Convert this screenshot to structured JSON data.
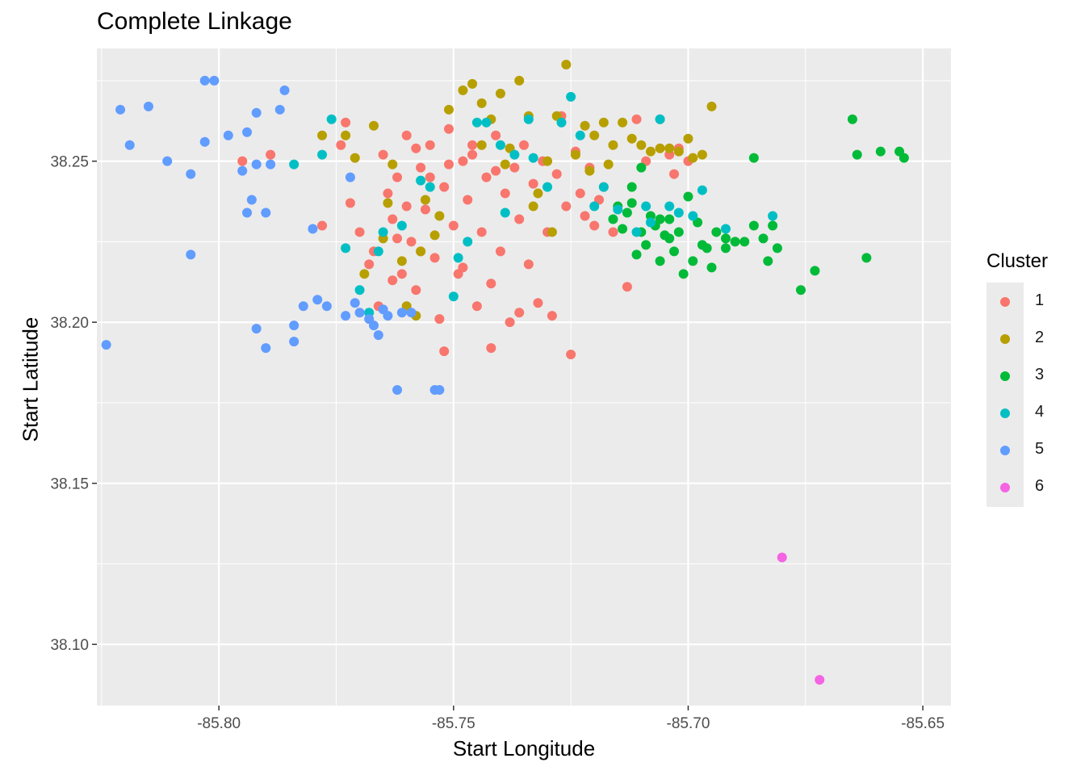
{
  "chart_data": {
    "type": "scatter",
    "title": "Complete Linkage",
    "xlabel": "Start Longitude",
    "ylabel": "Start Latitude",
    "xlim": [
      -85.826,
      -85.644
    ],
    "ylim": [
      38.081,
      38.285
    ],
    "x_ticks": [
      -85.8,
      -85.75,
      -85.7,
      -85.65
    ],
    "x_tick_labels": [
      "-85.80",
      "-85.75",
      "-85.70",
      "-85.65"
    ],
    "y_ticks": [
      38.1,
      38.15,
      38.2,
      38.25
    ],
    "y_tick_labels": [
      "38.10",
      "38.15",
      "38.20",
      "38.25"
    ],
    "grid": true,
    "legend": {
      "title": "Cluster",
      "position": "right"
    },
    "series": [
      {
        "name": "1",
        "color": "#F8766D",
        "points": [
          [
            -85.795,
            38.25
          ],
          [
            -85.789,
            38.252
          ],
          [
            -85.778,
            38.23
          ],
          [
            -85.774,
            38.255
          ],
          [
            -85.773,
            38.262
          ],
          [
            -85.772,
            38.237
          ],
          [
            -85.77,
            38.228
          ],
          [
            -85.768,
            38.218
          ],
          [
            -85.767,
            38.222
          ],
          [
            -85.766,
            38.205
          ],
          [
            -85.765,
            38.252
          ],
          [
            -85.764,
            38.24
          ],
          [
            -85.763,
            38.232
          ],
          [
            -85.762,
            38.245
          ],
          [
            -85.761,
            38.215
          ],
          [
            -85.76,
            38.258
          ],
          [
            -85.759,
            38.225
          ],
          [
            -85.758,
            38.21
          ],
          [
            -85.757,
            38.248
          ],
          [
            -85.756,
            38.235
          ],
          [
            -85.755,
            38.255
          ],
          [
            -85.754,
            38.22
          ],
          [
            -85.753,
            38.201
          ],
          [
            -85.752,
            38.242
          ],
          [
            -85.751,
            38.26
          ],
          [
            -85.75,
            38.23
          ],
          [
            -85.749,
            38.215
          ],
          [
            -85.748,
            38.25
          ],
          [
            -85.747,
            38.238
          ],
          [
            -85.746,
            38.255
          ],
          [
            -85.745,
            38.205
          ],
          [
            -85.744,
            38.228
          ],
          [
            -85.743,
            38.245
          ],
          [
            -85.742,
            38.212
          ],
          [
            -85.741,
            38.258
          ],
          [
            -85.74,
            38.222
          ],
          [
            -85.739,
            38.24
          ],
          [
            -85.738,
            38.2
          ],
          [
            -85.737,
            38.248
          ],
          [
            -85.736,
            38.232
          ],
          [
            -85.735,
            38.255
          ],
          [
            -85.734,
            38.218
          ],
          [
            -85.733,
            38.243
          ],
          [
            -85.732,
            38.206
          ],
          [
            -85.731,
            38.25
          ],
          [
            -85.73,
            38.228
          ],
          [
            -85.729,
            38.202
          ],
          [
            -85.728,
            38.246
          ],
          [
            -85.727,
            38.264
          ],
          [
            -85.726,
            38.236
          ],
          [
            -85.725,
            38.19
          ],
          [
            -85.724,
            38.253
          ],
          [
            -85.723,
            38.24
          ],
          [
            -85.722,
            38.233
          ],
          [
            -85.721,
            38.248
          ],
          [
            -85.72,
            38.23
          ],
          [
            -85.719,
            38.238
          ],
          [
            -85.718,
            38.242
          ],
          [
            -85.716,
            38.228
          ],
          [
            -85.713,
            38.211
          ],
          [
            -85.711,
            38.263
          ],
          [
            -85.709,
            38.25
          ],
          [
            -85.706,
            38.263
          ],
          [
            -85.704,
            38.252
          ],
          [
            -85.703,
            38.246
          ],
          [
            -85.702,
            38.254
          ],
          [
            -85.7,
            38.25
          ],
          [
            -85.742,
            38.192
          ],
          [
            -85.752,
            38.191
          ],
          [
            -85.736,
            38.203
          ],
          [
            -85.748,
            38.217
          ],
          [
            -85.757,
            38.222
          ],
          [
            -85.763,
            38.213
          ],
          [
            -85.76,
            38.236
          ],
          [
            -85.755,
            38.245
          ],
          [
            -85.751,
            38.249
          ],
          [
            -85.746,
            38.252
          ],
          [
            -85.741,
            38.247
          ],
          [
            -85.758,
            38.254
          ],
          [
            -85.762,
            38.226
          ]
        ]
      },
      {
        "name": "2",
        "color": "#B79F00",
        "points": [
          [
            -85.778,
            38.258
          ],
          [
            -85.773,
            38.258
          ],
          [
            -85.771,
            38.251
          ],
          [
            -85.769,
            38.215
          ],
          [
            -85.767,
            38.261
          ],
          [
            -85.765,
            38.226
          ],
          [
            -85.763,
            38.249
          ],
          [
            -85.76,
            38.205
          ],
          [
            -85.758,
            38.202
          ],
          [
            -85.756,
            38.238
          ],
          [
            -85.754,
            38.227
          ],
          [
            -85.751,
            38.266
          ],
          [
            -85.748,
            38.272
          ],
          [
            -85.746,
            38.274
          ],
          [
            -85.744,
            38.255
          ],
          [
            -85.742,
            38.263
          ],
          [
            -85.74,
            38.271
          ],
          [
            -85.738,
            38.254
          ],
          [
            -85.736,
            38.275
          ],
          [
            -85.734,
            38.264
          ],
          [
            -85.732,
            38.24
          ],
          [
            -85.73,
            38.25
          ],
          [
            -85.728,
            38.264
          ],
          [
            -85.726,
            38.28
          ],
          [
            -85.724,
            38.252
          ],
          [
            -85.722,
            38.261
          ],
          [
            -85.72,
            38.258
          ],
          [
            -85.718,
            38.262
          ],
          [
            -85.716,
            38.255
          ],
          [
            -85.714,
            38.262
          ],
          [
            -85.712,
            38.257
          ],
          [
            -85.71,
            38.255
          ],
          [
            -85.708,
            38.253
          ],
          [
            -85.706,
            38.254
          ],
          [
            -85.704,
            38.254
          ],
          [
            -85.702,
            38.253
          ],
          [
            -85.7,
            38.257
          ],
          [
            -85.699,
            38.251
          ],
          [
            -85.697,
            38.252
          ],
          [
            -85.695,
            38.267
          ],
          [
            -85.744,
            38.268
          ],
          [
            -85.739,
            38.249
          ],
          [
            -85.733,
            38.236
          ],
          [
            -85.729,
            38.228
          ],
          [
            -85.721,
            38.247
          ],
          [
            -85.717,
            38.249
          ],
          [
            -85.757,
            38.222
          ],
          [
            -85.753,
            38.233
          ],
          [
            -85.761,
            38.219
          ],
          [
            -85.764,
            38.237
          ]
        ]
      },
      {
        "name": "3",
        "color": "#00BA38",
        "points": [
          [
            -85.665,
            38.263
          ],
          [
            -85.664,
            38.252
          ],
          [
            -85.659,
            38.253
          ],
          [
            -85.655,
            38.253
          ],
          [
            -85.654,
            38.251
          ],
          [
            -85.662,
            38.22
          ],
          [
            -85.673,
            38.216
          ],
          [
            -85.676,
            38.21
          ],
          [
            -85.681,
            38.223
          ],
          [
            -85.682,
            38.23
          ],
          [
            -85.683,
            38.219
          ],
          [
            -85.684,
            38.226
          ],
          [
            -85.686,
            38.23
          ],
          [
            -85.686,
            38.251
          ],
          [
            -85.69,
            38.225
          ],
          [
            -85.692,
            38.223
          ],
          [
            -85.694,
            38.228
          ],
          [
            -85.695,
            38.217
          ],
          [
            -85.697,
            38.224
          ],
          [
            -85.699,
            38.219
          ],
          [
            -85.7,
            38.239
          ],
          [
            -85.701,
            38.215
          ],
          [
            -85.702,
            38.228
          ],
          [
            -85.703,
            38.222
          ],
          [
            -85.704,
            38.232
          ],
          [
            -85.705,
            38.227
          ],
          [
            -85.706,
            38.219
          ],
          [
            -85.707,
            38.23
          ],
          [
            -85.708,
            38.233
          ],
          [
            -85.709,
            38.224
          ],
          [
            -85.71,
            38.228
          ],
          [
            -85.711,
            38.221
          ],
          [
            -85.712,
            38.237
          ],
          [
            -85.713,
            38.234
          ],
          [
            -85.714,
            38.229
          ],
          [
            -85.715,
            38.236
          ],
          [
            -85.716,
            38.232
          ],
          [
            -85.71,
            38.248
          ],
          [
            -85.712,
            38.242
          ],
          [
            -85.698,
            38.231
          ],
          [
            -85.696,
            38.223
          ],
          [
            -85.692,
            38.226
          ],
          [
            -85.688,
            38.225
          ],
          [
            -85.704,
            38.226
          ],
          [
            -85.706,
            38.232
          ]
        ]
      },
      {
        "name": "4",
        "color": "#00BFC4",
        "points": [
          [
            -85.784,
            38.249
          ],
          [
            -85.776,
            38.263
          ],
          [
            -85.778,
            38.252
          ],
          [
            -85.773,
            38.223
          ],
          [
            -85.77,
            38.21
          ],
          [
            -85.768,
            38.203
          ],
          [
            -85.766,
            38.222
          ],
          [
            -85.765,
            38.228
          ],
          [
            -85.761,
            38.23
          ],
          [
            -85.757,
            38.244
          ],
          [
            -85.755,
            38.242
          ],
          [
            -85.75,
            38.208
          ],
          [
            -85.749,
            38.22
          ],
          [
            -85.747,
            38.225
          ],
          [
            -85.745,
            38.262
          ],
          [
            -85.743,
            38.262
          ],
          [
            -85.74,
            38.255
          ],
          [
            -85.739,
            38.234
          ],
          [
            -85.737,
            38.252
          ],
          [
            -85.734,
            38.263
          ],
          [
            -85.733,
            38.251
          ],
          [
            -85.73,
            38.242
          ],
          [
            -85.727,
            38.262
          ],
          [
            -85.725,
            38.27
          ],
          [
            -85.723,
            38.258
          ],
          [
            -85.72,
            38.236
          ],
          [
            -85.718,
            38.242
          ],
          [
            -85.715,
            38.235
          ],
          [
            -85.711,
            38.228
          ],
          [
            -85.709,
            38.236
          ],
          [
            -85.706,
            38.263
          ],
          [
            -85.704,
            38.236
          ],
          [
            -85.702,
            38.234
          ],
          [
            -85.699,
            38.233
          ],
          [
            -85.697,
            38.241
          ],
          [
            -85.692,
            38.229
          ],
          [
            -85.682,
            38.233
          ],
          [
            -85.708,
            38.231
          ]
        ]
      },
      {
        "name": "5",
        "color": "#619CFF",
        "points": [
          [
            -85.824,
            38.193
          ],
          [
            -85.821,
            38.266
          ],
          [
            -85.819,
            38.255
          ],
          [
            -85.815,
            38.267
          ],
          [
            -85.811,
            38.25
          ],
          [
            -85.806,
            38.246
          ],
          [
            -85.806,
            38.221
          ],
          [
            -85.803,
            38.256
          ],
          [
            -85.803,
            38.275
          ],
          [
            -85.801,
            38.275
          ],
          [
            -85.798,
            38.258
          ],
          [
            -85.795,
            38.247
          ],
          [
            -85.794,
            38.259
          ],
          [
            -85.794,
            38.234
          ],
          [
            -85.793,
            38.238
          ],
          [
            -85.792,
            38.249
          ],
          [
            -85.792,
            38.265
          ],
          [
            -85.792,
            38.198
          ],
          [
            -85.79,
            38.192
          ],
          [
            -85.79,
            38.234
          ],
          [
            -85.789,
            38.249
          ],
          [
            -85.787,
            38.266
          ],
          [
            -85.786,
            38.272
          ],
          [
            -85.784,
            38.199
          ],
          [
            -85.784,
            38.194
          ],
          [
            -85.782,
            38.205
          ],
          [
            -85.78,
            38.229
          ],
          [
            -85.779,
            38.207
          ],
          [
            -85.777,
            38.205
          ],
          [
            -85.773,
            38.202
          ],
          [
            -85.772,
            38.245
          ],
          [
            -85.771,
            38.206
          ],
          [
            -85.77,
            38.203
          ],
          [
            -85.768,
            38.201
          ],
          [
            -85.767,
            38.199
          ],
          [
            -85.766,
            38.196
          ],
          [
            -85.765,
            38.204
          ],
          [
            -85.764,
            38.202
          ],
          [
            -85.762,
            38.179
          ],
          [
            -85.761,
            38.203
          ],
          [
            -85.759,
            38.203
          ],
          [
            -85.754,
            38.179
          ],
          [
            -85.753,
            38.179
          ]
        ]
      },
      {
        "name": "6",
        "color": "#F564E3",
        "points": [
          [
            -85.68,
            38.127
          ],
          [
            -85.672,
            38.089
          ]
        ]
      }
    ]
  }
}
